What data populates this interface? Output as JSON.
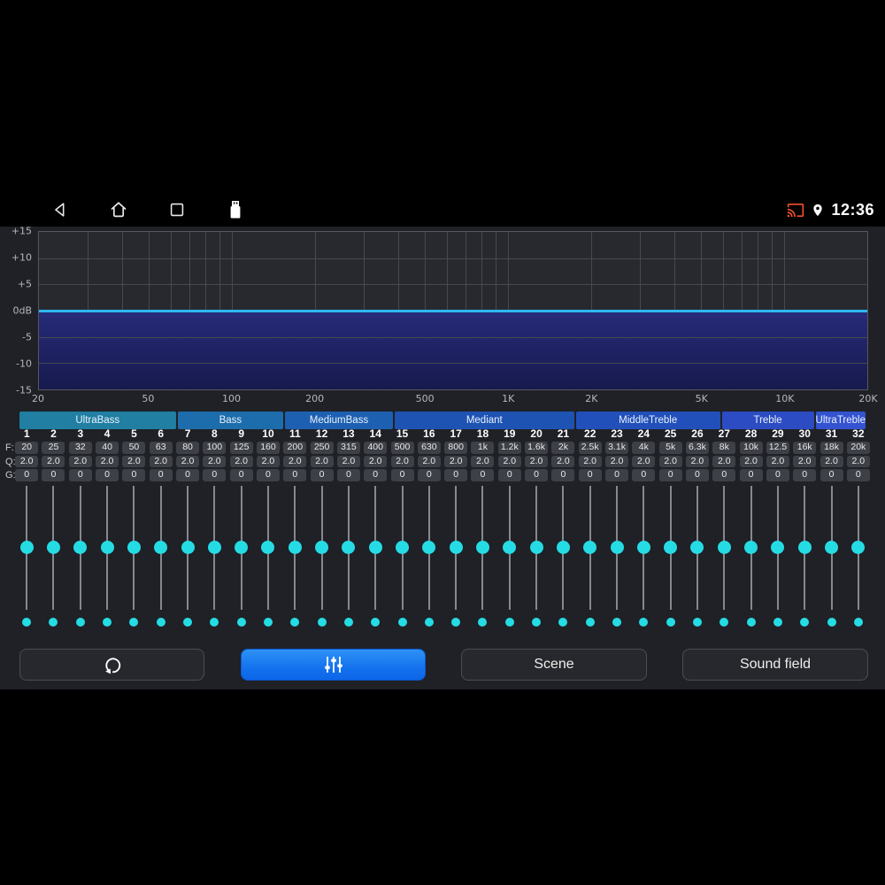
{
  "status_bar": {
    "time": "12:36",
    "left_icons": [
      "back-icon",
      "home-icon",
      "recents-icon",
      "usb-drive-icon"
    ],
    "right_icons": [
      "cast-icon",
      "location-icon"
    ]
  },
  "eq_graph": {
    "type": "line",
    "y_range": [
      -15,
      15
    ],
    "f_range": [
      20,
      20000
    ],
    "y_ticks": [
      {
        "label": "+15",
        "db": 15
      },
      {
        "label": "+10",
        "db": 10
      },
      {
        "label": "+5",
        "db": 5
      },
      {
        "label": "0dB",
        "db": 0
      },
      {
        "label": "-5",
        "db": -5
      },
      {
        "label": "-10",
        "db": -10
      },
      {
        "label": "-15",
        "db": -15
      }
    ],
    "x_ticks": [
      {
        "label": "20",
        "f": 20
      },
      {
        "label": "50",
        "f": 50
      },
      {
        "label": "100",
        "f": 100
      },
      {
        "label": "200",
        "f": 200
      },
      {
        "label": "500",
        "f": 500
      },
      {
        "label": "1K",
        "f": 1000
      },
      {
        "label": "2K",
        "f": 2000
      },
      {
        "label": "5K",
        "f": 5000
      },
      {
        "label": "10K",
        "f": 10000
      },
      {
        "label": "20K",
        "f": 20000
      }
    ],
    "minor_gridline_freqs": [
      30,
      40,
      50,
      60,
      70,
      80,
      90,
      100,
      200,
      300,
      400,
      500,
      600,
      700,
      800,
      900,
      1000,
      2000,
      3000,
      4000,
      5000,
      6000,
      7000,
      8000,
      9000,
      10000
    ],
    "curve_db": 0,
    "curve_color": "#2fb7f0",
    "fill_top_color": "#272b7a",
    "fill_bottom_color": "#171a4d"
  },
  "bands": [
    {
      "label": "UltraBass",
      "color": "#207fa2",
      "weight": 180
    },
    {
      "label": "Bass",
      "color": "#1d6cab",
      "weight": 122
    },
    {
      "label": "MediumBass",
      "color": "#1d60b1",
      "weight": 124
    },
    {
      "label": "Mediant",
      "color": "#1e53b3",
      "weight": 207
    },
    {
      "label": "MiddleTreble",
      "color": "#2150ba",
      "weight": 166
    },
    {
      "label": "Treble",
      "color": "#2b4cc2",
      "weight": 106
    },
    {
      "label": "UltraTreble",
      "color": "#3353d0",
      "weight": 43
    }
  ],
  "channel_rows": {
    "f_label": "F:",
    "q_label": "Q:",
    "g_label": "G:"
  },
  "channels": [
    {
      "num": "1",
      "f": "20",
      "q": "2.0",
      "g": "0"
    },
    {
      "num": "2",
      "f": "25",
      "q": "2.0",
      "g": "0"
    },
    {
      "num": "3",
      "f": "32",
      "q": "2.0",
      "g": "0"
    },
    {
      "num": "4",
      "f": "40",
      "q": "2.0",
      "g": "0"
    },
    {
      "num": "5",
      "f": "50",
      "q": "2.0",
      "g": "0"
    },
    {
      "num": "6",
      "f": "63",
      "q": "2.0",
      "g": "0"
    },
    {
      "num": "7",
      "f": "80",
      "q": "2.0",
      "g": "0"
    },
    {
      "num": "8",
      "f": "100",
      "q": "2.0",
      "g": "0"
    },
    {
      "num": "9",
      "f": "125",
      "q": "2.0",
      "g": "0"
    },
    {
      "num": "10",
      "f": "160",
      "q": "2.0",
      "g": "0"
    },
    {
      "num": "11",
      "f": "200",
      "q": "2.0",
      "g": "0"
    },
    {
      "num": "12",
      "f": "250",
      "q": "2.0",
      "g": "0"
    },
    {
      "num": "13",
      "f": "315",
      "q": "2.0",
      "g": "0"
    },
    {
      "num": "14",
      "f": "400",
      "q": "2.0",
      "g": "0"
    },
    {
      "num": "15",
      "f": "500",
      "q": "2.0",
      "g": "0"
    },
    {
      "num": "16",
      "f": "630",
      "q": "2.0",
      "g": "0"
    },
    {
      "num": "17",
      "f": "800",
      "q": "2.0",
      "g": "0"
    },
    {
      "num": "18",
      "f": "1k",
      "q": "2.0",
      "g": "0"
    },
    {
      "num": "19",
      "f": "1.2k",
      "q": "2.0",
      "g": "0"
    },
    {
      "num": "20",
      "f": "1.6k",
      "q": "2.0",
      "g": "0"
    },
    {
      "num": "21",
      "f": "2k",
      "q": "2.0",
      "g": "0"
    },
    {
      "num": "22",
      "f": "2.5k",
      "q": "2.0",
      "g": "0"
    },
    {
      "num": "23",
      "f": "3.1k",
      "q": "2.0",
      "g": "0"
    },
    {
      "num": "24",
      "f": "4k",
      "q": "2.0",
      "g": "0"
    },
    {
      "num": "25",
      "f": "5k",
      "q": "2.0",
      "g": "0"
    },
    {
      "num": "26",
      "f": "6.3k",
      "q": "2.0",
      "g": "0"
    },
    {
      "num": "27",
      "f": "8k",
      "q": "2.0",
      "g": "0"
    },
    {
      "num": "28",
      "f": "10k",
      "q": "2.0",
      "g": "0"
    },
    {
      "num": "29",
      "f": "12.5",
      "q": "2.0",
      "g": "0"
    },
    {
      "num": "30",
      "f": "16k",
      "q": "2.0",
      "g": "0"
    },
    {
      "num": "31",
      "f": "18k",
      "q": "2.0",
      "g": "0"
    },
    {
      "num": "32",
      "f": "20k",
      "q": "2.0",
      "g": "0"
    }
  ],
  "slider": {
    "knob_color": "#25dce4"
  },
  "buttons": {
    "reset": {
      "icon": "reset-icon"
    },
    "equalizer": {
      "icon": "equalizer-sliders-icon",
      "active": true
    },
    "scene": {
      "label": "Scene"
    },
    "sound_field": {
      "label": "Sound field"
    }
  }
}
